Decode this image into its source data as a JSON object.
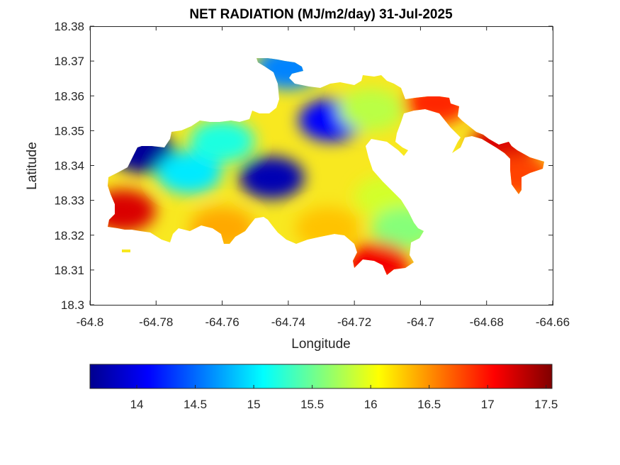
{
  "chart_data": {
    "type": "heatmap",
    "title": "NET RADIATION (MJ/m2/day) 31-Jul-2025",
    "xlabel": "Longitude",
    "ylabel": "Latitude",
    "xlim": [
      -64.8,
      -64.66
    ],
    "ylim": [
      18.3,
      18.38
    ],
    "x_ticks": [
      "-64.8",
      "-64.78",
      "-64.76",
      "-64.74",
      "-64.72",
      "-64.7",
      "-64.68",
      "-64.66"
    ],
    "y_ticks": [
      "18.3",
      "18.31",
      "18.32",
      "18.33",
      "18.34",
      "18.35",
      "18.36",
      "18.37",
      "18.38"
    ],
    "colorbar": {
      "range": [
        13.6,
        17.55
      ],
      "ticks": [
        "14",
        "14.5",
        "15",
        "15.5",
        "16",
        "16.5",
        "17",
        "17.5"
      ],
      "colormap": "jet"
    },
    "grid": false,
    "field_samples": [
      {
        "lon": -64.745,
        "lat": 18.3365,
        "value": 13.8
      },
      {
        "lon": -64.727,
        "lat": 18.353,
        "value": 14.1
      },
      {
        "lon": -64.784,
        "lat": 18.344,
        "value": 13.7
      },
      {
        "lon": -64.74,
        "lat": 18.368,
        "value": 14.6
      },
      {
        "lon": -64.77,
        "lat": 18.338,
        "value": 15.0
      },
      {
        "lon": -64.76,
        "lat": 18.347,
        "value": 15.2
      },
      {
        "lon": -64.715,
        "lat": 18.356,
        "value": 15.8
      },
      {
        "lon": -64.71,
        "lat": 18.331,
        "value": 15.9
      },
      {
        "lon": -64.705,
        "lat": 18.322,
        "value": 15.6
      },
      {
        "lon": -64.79,
        "lat": 18.327,
        "value": 17.2
      },
      {
        "lon": -64.76,
        "lat": 18.322,
        "value": 16.4
      },
      {
        "lon": -64.728,
        "lat": 18.322,
        "value": 16.3
      },
      {
        "lon": -64.713,
        "lat": 18.312,
        "value": 17.1
      },
      {
        "lon": -64.695,
        "lat": 18.358,
        "value": 16.9
      },
      {
        "lon": -64.675,
        "lat": 18.346,
        "value": 17.2
      },
      {
        "lon": -64.67,
        "lat": 18.337,
        "value": 16.8
      }
    ]
  }
}
